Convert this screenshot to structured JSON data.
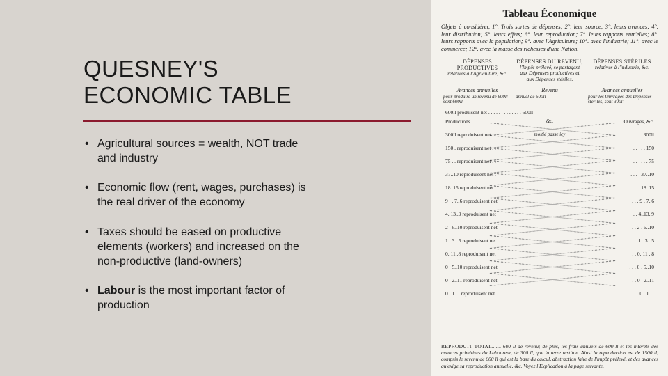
{
  "title_line1": "QUESNEY'S",
  "title_line2": "ECONOMIC TABLE",
  "bullets": [
    {
      "html": "Agricultural sources = wealth, NOT trade and industry"
    },
    {
      "html": "Economic flow (rent, wages, purchases) is the real driver of the economy"
    },
    {
      "html": "Taxes should be eased on productive elements (workers) and increased on the non-productive (land-owners)"
    },
    {
      "html": "<span class='bold'>Labour</span> is the most important factor of production"
    }
  ],
  "tableau": {
    "title": "Tableau Économique",
    "objets": "Objets à considérer, 1°. Trois sortes de dépenses; 2°. leur source; 3°. leurs avances; 4°. leur distribution; 5°. leurs effets; 6°. leur reproduction; 7°. leurs rapports entr'elles; 8°. leurs rapports avec la population; 9°. avec l'Agriculture; 10°. avec l'industrie; 11°. avec le commerce; 12°. avec la masse des richesses d'une Nation.",
    "cols": [
      {
        "top": "DÉPENSES PRODUCTIVES",
        "sub": "relatives à l'Agriculture, &c."
      },
      {
        "top": "DÉPENSES DU REVENU,",
        "sub": "l'Impôt prélevé, se partagent aux Dépenses productives et aux Dépenses stériles."
      },
      {
        "top": "DÉPENSES STÉRILES",
        "sub": "relatives à l'industrie, &c."
      }
    ],
    "avances": [
      "Avances annuelles",
      "Revenu",
      "Avances annuelles"
    ],
    "desc": [
      "pour produire un revenu de 600ll sont 600ll",
      "annuel de 600ll",
      "pour les Ouvrages des Dépenses stériles, sont 300ll"
    ],
    "start_note": "600ll produisent net . . . . . . . . . . . . . 600ll",
    "rows": [
      {
        "l": "Productions",
        "c": "&c.",
        "r": "Ouvrages, &c."
      },
      {
        "l": "300ll reproduisent net . .",
        "c": "moitié passe icy",
        "r": ". . . . . 300ll"
      },
      {
        "l": "150 . reproduisent net . .",
        "c": "",
        "r": ". . . . . 150"
      },
      {
        "l": "75 . . reproduisent net . .",
        "c": "",
        "r": ". . . . . . 75"
      },
      {
        "l": "37..10 reproduisent net .",
        "c": "",
        "r": ". . . . 37..10"
      },
      {
        "l": "18..15 reproduisent net .",
        "c": "",
        "r": ". . . . 18..15"
      },
      {
        "l": "9 . . 7..6 reproduisent net",
        "c": "",
        "r": ". . . 9 . 7..6"
      },
      {
        "l": "4..13..9 reproduisent net",
        "c": "",
        "r": ". . 4..13..9"
      },
      {
        "l": "2 . 6..10 reproduisent net",
        "c": "",
        "r": ". . 2 . 6..10"
      },
      {
        "l": "1 . 3 . 5 reproduisent net",
        "c": "",
        "r": ". . . 1 . 3 . 5"
      },
      {
        "l": "0..11..8 reproduisent net",
        "c": "",
        "r": ". . . 0..11 . 8"
      },
      {
        "l": "0 . 5..10 reproduisent net",
        "c": "",
        "r": ". . . 0 . 5..10"
      },
      {
        "l": "0 . 2..11 reproduisent net",
        "c": "",
        "r": ". . . 0 . 2..11"
      },
      {
        "l": "0 . 1 . . reproduisent net",
        "c": "",
        "r": ". . . . 0 . 1 . ."
      }
    ],
    "reproduit": "REPRODUIT TOTAL....... 600 ll de revenu; de plus, les frais annuels de 600 ll et les intérêts des avances primitives du Laboureur, de 300 ll, que la terre restitue. Ainsi la reproduction est de 1500 ll, compris le revenu de 600 ll qui est la base du calcul, abstraction faite de l'impôt prélevé, et des avances qu'exige sa reproduction annuelle, &c. Voyez l'Explication à la page suivante."
  },
  "colors": {
    "background": "#d8d4cf",
    "accent": "#8b1a2e",
    "paper": "#f4f2ed",
    "text": "#1a1a1a"
  }
}
